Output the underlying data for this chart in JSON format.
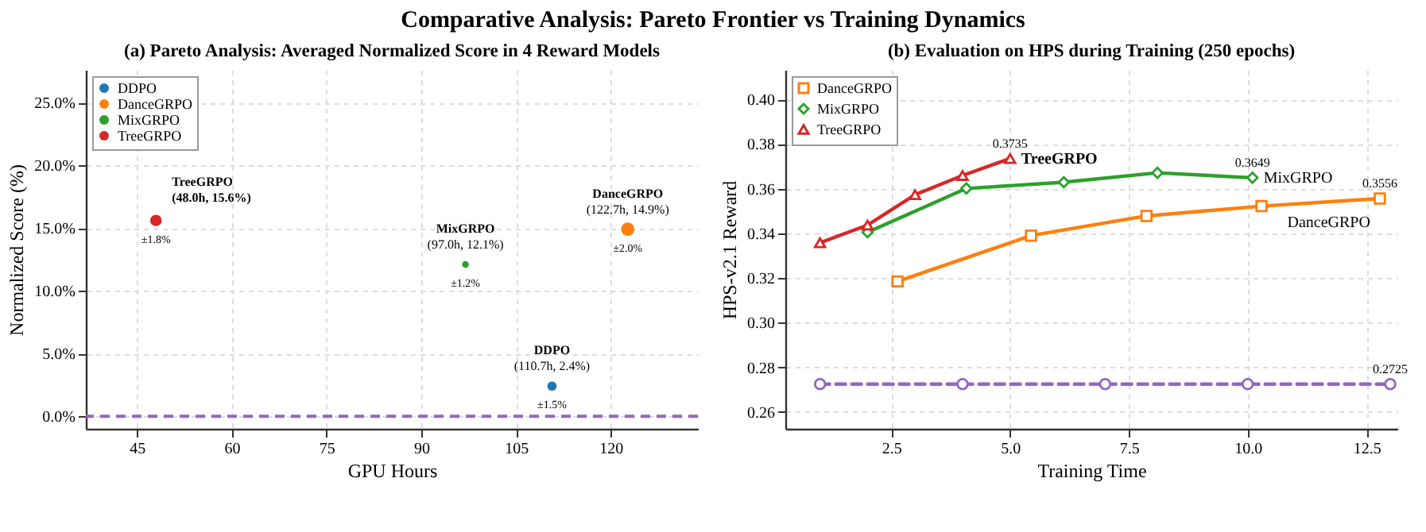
{
  "chart_data": [
    {
      "type": "other",
      "title": "Comparative Analysis: Pareto Frontier vs Training Dynamics"
    },
    {
      "type": "bubble",
      "title": "(a) Pareto Analysis: Averaged Normalized Score in 4 Reward Models",
      "xlabel": "GPU Hours",
      "ylabel": "Normalized Score (%)",
      "xlim": [
        36.9,
        133.8
      ],
      "xticks": [
        45,
        60,
        75,
        90,
        105,
        120
      ],
      "ylim": [
        -1,
        27.6
      ],
      "yticks": [
        {
          "value": 0,
          "label": "0.0%"
        },
        {
          "value": 5,
          "label": "5.0%"
        },
        {
          "value": 10,
          "label": "10.0%"
        },
        {
          "value": 15,
          "label": "15.0%"
        },
        {
          "value": 20,
          "label": "20.0%"
        },
        {
          "value": 25,
          "label": "25.0%"
        }
      ],
      "grid": true,
      "legend": "top left",
      "marker": "circle",
      "series": [
        {
          "name": "DDPO",
          "color": "#1f77b4",
          "x": [
            110.7
          ],
          "values": [
            2.4
          ],
          "sizes": [
            0.49
          ],
          "value_labels": [
            "(110.7h, 2.4%)"
          ]
        },
        {
          "name": "DanceGRPO",
          "color": "#ff7f0e",
          "x": [
            122.7
          ],
          "values": [
            14.9
          ],
          "sizes": [
            1
          ],
          "value_labels": [
            "(122.7h, 14.9%)"
          ]
        },
        {
          "name": "MixGRPO",
          "color": "#2ca02c",
          "x": [
            97.0
          ],
          "values": [
            12.1
          ],
          "sizes": [
            0.26
          ],
          "value_labels": [
            "(97.0h, 12.1%)"
          ]
        },
        {
          "name": "TreeGRPO",
          "color": "#d62728",
          "x": [
            48.0
          ],
          "values": [
            15.6
          ],
          "sizes": [
            0.74
          ],
          "value_labels": [
            "(48.0h, 15.6%)"
          ]
        }
      ],
      "ref_lines": [
        {
          "axis": "y",
          "value": 0,
          "color": "#9467bd",
          "line_style": "dashed"
        }
      ],
      "annotations": [
        {
          "text": "±1.5%",
          "x": 110.7,
          "y": 2.4
        },
        {
          "text": "±2.0%",
          "x": 122.7,
          "y": 14.9
        },
        {
          "text": "±1.2%",
          "x": 97.0,
          "y": 12.1
        },
        {
          "text": "±1.8%",
          "x": 48.0,
          "y": 15.6
        }
      ]
    },
    {
      "type": "line",
      "title": "(b) Evaluation on HPS during Training (250 epochs)",
      "xlabel": "Training Time",
      "ylabel": "HPS-v2.1 Reward",
      "xlim": [
        0.27,
        13.15
      ],
      "xticks": [
        2.5,
        {
          "value": 5,
          "label": "5.0"
        },
        7.5,
        {
          "value": 10,
          "label": "10.0"
        },
        12.5
      ],
      "ylim": [
        0.2525,
        0.4132
      ],
      "yticks": [
        0.26,
        0.28,
        {
          "value": 0.3,
          "label": "0.30"
        },
        0.32,
        0.34,
        0.36,
        0.38,
        {
          "value": 0.4,
          "label": "0.40"
        }
      ],
      "grid": true,
      "legend": "top left",
      "series": [
        {
          "color": "#9467bd",
          "marker": "circle",
          "line_style": "dashed",
          "x": [
            1,
            4,
            7,
            10,
            13
          ],
          "values": [
            0.2725,
            0.2725,
            0.2725,
            0.2725,
            0.2725
          ],
          "value_labels": [
            null,
            null,
            null,
            null,
            "0.2725"
          ]
        },
        {
          "name": "DanceGRPO",
          "color": "#ff7f0e",
          "marker": "square",
          "line_style": "solid",
          "x": [
            2.63,
            5.44,
            7.87,
            10.29,
            12.78
          ],
          "values": [
            0.3185,
            0.339,
            0.3478,
            0.3522,
            0.3556
          ],
          "value_labels": [
            null,
            null,
            null,
            null,
            "0.3556"
          ]
        },
        {
          "name": "MixGRPO",
          "color": "#2ca02c",
          "marker": "diamond",
          "line_style": "solid",
          "x": [
            2.0,
            4.08,
            6.13,
            8.1,
            10.1
          ],
          "values": [
            0.3405,
            0.3601,
            0.3629,
            0.3671,
            0.3649
          ],
          "value_labels": [
            null,
            null,
            null,
            null,
            "0.3649"
          ]
        },
        {
          "name": "TreeGRPO",
          "color": "#d62728",
          "marker": "triangle",
          "line_style": "solid",
          "x": [
            1.0,
            2.0,
            3.0,
            4.0,
            5.0
          ],
          "values": [
            0.3358,
            0.3437,
            0.3573,
            0.3659,
            0.3735
          ],
          "value_labels": [
            null,
            null,
            null,
            null,
            "0.3735"
          ]
        }
      ]
    }
  ]
}
